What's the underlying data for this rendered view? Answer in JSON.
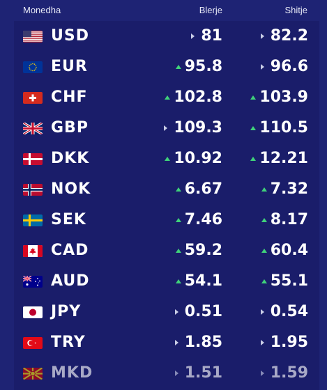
{
  "header": {
    "currency": "Monedha",
    "buy": "Blerje",
    "sell": "Shitje"
  },
  "colors": {
    "background": "#1e2374",
    "up": "#3fd27a",
    "neutral": "#c9cde6"
  },
  "rates": [
    {
      "code": "USD",
      "flag": "us-flag-icon",
      "buy": "81",
      "buy_trend": "neutral",
      "sell": "82.2",
      "sell_trend": "neutral"
    },
    {
      "code": "EUR",
      "flag": "eu-flag-icon",
      "buy": "95.8",
      "buy_trend": "up",
      "sell": "96.6",
      "sell_trend": "neutral"
    },
    {
      "code": "CHF",
      "flag": "ch-flag-icon",
      "buy": "102.8",
      "buy_trend": "up",
      "sell": "103.9",
      "sell_trend": "up"
    },
    {
      "code": "GBP",
      "flag": "gb-flag-icon",
      "buy": "109.3",
      "buy_trend": "neutral",
      "sell": "110.5",
      "sell_trend": "up"
    },
    {
      "code": "DKK",
      "flag": "dk-flag-icon",
      "buy": "10.92",
      "buy_trend": "up",
      "sell": "12.21",
      "sell_trend": "up"
    },
    {
      "code": "NOK",
      "flag": "no-flag-icon",
      "buy": "6.67",
      "buy_trend": "up",
      "sell": "7.32",
      "sell_trend": "up"
    },
    {
      "code": "SEK",
      "flag": "se-flag-icon",
      "buy": "7.46",
      "buy_trend": "up",
      "sell": "8.17",
      "sell_trend": "up"
    },
    {
      "code": "CAD",
      "flag": "ca-flag-icon",
      "buy": "59.2",
      "buy_trend": "up",
      "sell": "60.4",
      "sell_trend": "up"
    },
    {
      "code": "AUD",
      "flag": "au-flag-icon",
      "buy": "54.1",
      "buy_trend": "up",
      "sell": "55.1",
      "sell_trend": "up"
    },
    {
      "code": "JPY",
      "flag": "jp-flag-icon",
      "buy": "0.51",
      "buy_trend": "neutral",
      "sell": "0.54",
      "sell_trend": "neutral"
    },
    {
      "code": "TRY",
      "flag": "tr-flag-icon",
      "buy": "1.85",
      "buy_trend": "neutral",
      "sell": "1.95",
      "sell_trend": "neutral"
    },
    {
      "code": "MKD",
      "flag": "mk-flag-icon",
      "buy": "1.51",
      "buy_trend": "neutral",
      "sell": "1.59",
      "sell_trend": "neutral"
    }
  ]
}
